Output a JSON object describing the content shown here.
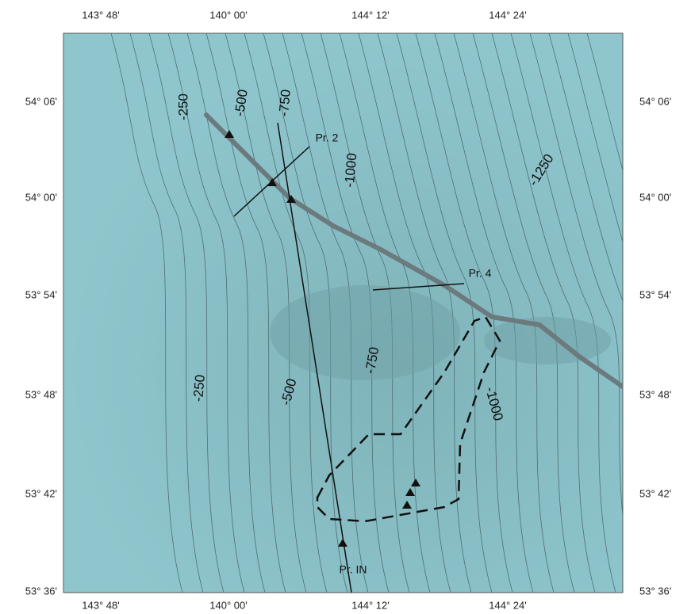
{
  "axes": {
    "top": [
      "143° 48'",
      "140° 00'",
      "144° 12'",
      "144° 24'"
    ],
    "bottom": [
      "143° 48'",
      "140° 00'",
      "144° 12'",
      "144° 24'"
    ],
    "left": [
      "54° 06'",
      "54° 00'",
      "53° 54'",
      "53° 48'",
      "53° 42'",
      "53° 36'"
    ],
    "right": [
      "54° 06'",
      "54° 00'",
      "53° 54'",
      "53° 48'",
      "53° 42'",
      "53° 36'"
    ]
  },
  "contour_labels": [
    "-250",
    "-500",
    "-750",
    "-1000",
    "-1250",
    "-250",
    "-500",
    "-750",
    "-1000"
  ],
  "profile_labels": [
    "Pr. 2",
    "Pr. 4",
    "Pr. IN"
  ]
}
